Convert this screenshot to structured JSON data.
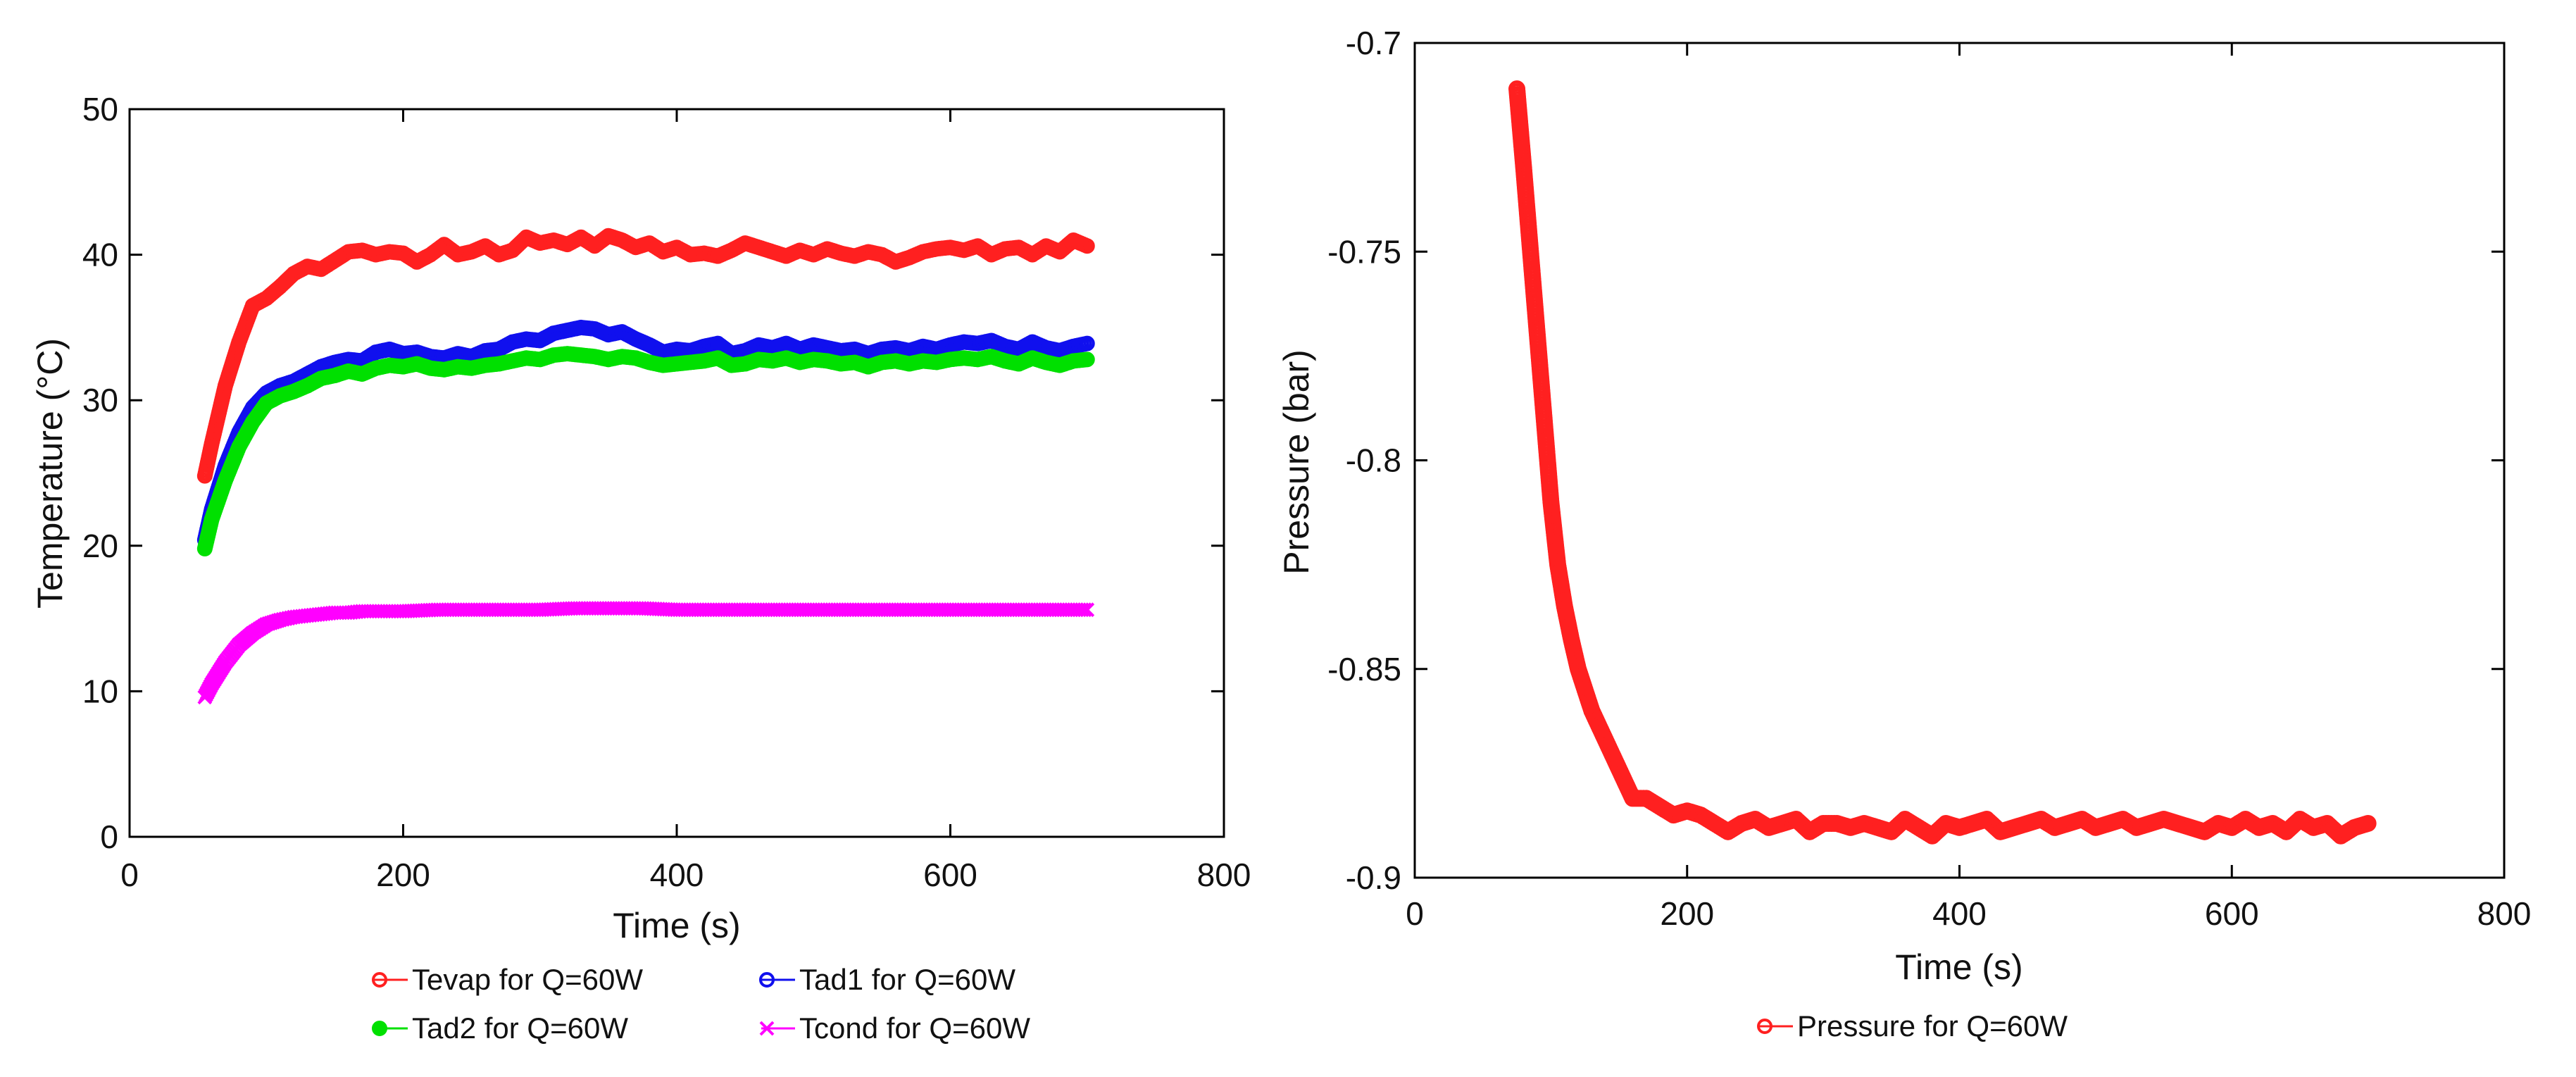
{
  "chart_data": [
    {
      "id": "temperature",
      "type": "line",
      "title": "",
      "xlabel": "Time (s)",
      "ylabel": "Temperature (°C)",
      "xlim": [
        0,
        800
      ],
      "ylim": [
        0,
        50
      ],
      "xticks": [
        0,
        200,
        400,
        600,
        800
      ],
      "yticks": [
        0,
        10,
        20,
        30,
        40,
        50
      ],
      "grid": false,
      "legend_position": "below",
      "series": [
        {
          "name": "Tevap for Q=60W",
          "color": "#ff2020",
          "marker": "circle-open",
          "x": [
            55,
            60,
            70,
            80,
            90,
            100,
            110,
            120,
            130,
            140,
            150,
            160,
            170,
            180,
            190,
            200,
            210,
            220,
            230,
            240,
            250,
            260,
            270,
            280,
            290,
            300,
            310,
            320,
            330,
            340,
            350,
            360,
            370,
            380,
            390,
            400,
            410,
            420,
            430,
            440,
            450,
            460,
            470,
            480,
            490,
            500,
            510,
            520,
            530,
            540,
            550,
            560,
            570,
            580,
            590,
            600,
            610,
            620,
            630,
            640,
            650,
            660,
            670,
            680,
            690,
            700
          ],
          "y": [
            24.8,
            27.0,
            31.0,
            34.0,
            36.5,
            37.0,
            37.8,
            38.7,
            39.2,
            39.0,
            39.6,
            40.2,
            40.3,
            40.0,
            40.2,
            40.1,
            39.5,
            40.0,
            40.7,
            40.0,
            40.2,
            40.6,
            40.0,
            40.3,
            41.2,
            40.8,
            41.0,
            40.7,
            41.2,
            40.6,
            41.3,
            41.0,
            40.5,
            40.8,
            40.2,
            40.5,
            40.0,
            40.1,
            39.9,
            40.3,
            40.8,
            40.5,
            40.2,
            39.9,
            40.3,
            40.0,
            40.4,
            40.1,
            39.9,
            40.2,
            40.0,
            39.5,
            39.8,
            40.2,
            40.4,
            40.5,
            40.3,
            40.6,
            40.0,
            40.4,
            40.5,
            40.0,
            40.6,
            40.2,
            41.0,
            40.6
          ]
        },
        {
          "name": "Tad1 for Q=60W",
          "color": "#1010ee",
          "marker": "circle-open",
          "x": [
            55,
            60,
            70,
            80,
            90,
            100,
            110,
            120,
            130,
            140,
            150,
            160,
            170,
            180,
            190,
            200,
            210,
            220,
            230,
            240,
            250,
            260,
            270,
            280,
            290,
            300,
            310,
            320,
            330,
            340,
            350,
            360,
            370,
            380,
            390,
            400,
            410,
            420,
            430,
            440,
            450,
            460,
            470,
            480,
            490,
            500,
            510,
            520,
            530,
            540,
            550,
            560,
            570,
            580,
            590,
            600,
            610,
            620,
            630,
            640,
            650,
            660,
            670,
            680,
            690,
            700
          ],
          "y": [
            20.4,
            22.5,
            25.5,
            27.8,
            29.5,
            30.5,
            31.0,
            31.3,
            31.8,
            32.3,
            32.6,
            32.8,
            32.7,
            33.3,
            33.5,
            33.2,
            33.3,
            33.0,
            32.9,
            33.2,
            33.0,
            33.4,
            33.5,
            34.0,
            34.2,
            34.1,
            34.6,
            34.8,
            35.0,
            34.9,
            34.5,
            34.7,
            34.2,
            33.8,
            33.3,
            33.5,
            33.4,
            33.7,
            33.9,
            33.2,
            33.4,
            33.8,
            33.6,
            33.9,
            33.5,
            33.8,
            33.6,
            33.4,
            33.5,
            33.2,
            33.5,
            33.6,
            33.4,
            33.7,
            33.5,
            33.8,
            34.0,
            33.9,
            34.1,
            33.7,
            33.5,
            34.0,
            33.6,
            33.4,
            33.7,
            33.9
          ]
        },
        {
          "name": "Tad2 for Q=60W",
          "color": "#00e000",
          "marker": "circle-filled",
          "x": [
            55,
            60,
            70,
            80,
            90,
            100,
            110,
            120,
            130,
            140,
            150,
            160,
            170,
            180,
            190,
            200,
            210,
            220,
            230,
            240,
            250,
            260,
            270,
            280,
            290,
            300,
            310,
            320,
            330,
            340,
            350,
            360,
            370,
            380,
            390,
            400,
            410,
            420,
            430,
            440,
            450,
            460,
            470,
            480,
            490,
            500,
            510,
            520,
            530,
            540,
            550,
            560,
            570,
            580,
            590,
            600,
            610,
            620,
            630,
            640,
            650,
            660,
            670,
            680,
            690,
            700
          ],
          "y": [
            19.8,
            21.8,
            24.5,
            26.8,
            28.5,
            29.8,
            30.3,
            30.6,
            31.0,
            31.5,
            31.7,
            32.0,
            31.8,
            32.2,
            32.4,
            32.3,
            32.5,
            32.2,
            32.1,
            32.3,
            32.2,
            32.4,
            32.5,
            32.7,
            32.9,
            32.8,
            33.1,
            33.2,
            33.1,
            33.0,
            32.8,
            33.0,
            32.9,
            32.6,
            32.4,
            32.5,
            32.6,
            32.7,
            32.9,
            32.4,
            32.5,
            32.8,
            32.7,
            32.9,
            32.6,
            32.8,
            32.7,
            32.5,
            32.6,
            32.3,
            32.6,
            32.7,
            32.5,
            32.7,
            32.6,
            32.8,
            32.9,
            32.8,
            33.0,
            32.7,
            32.5,
            32.9,
            32.6,
            32.4,
            32.7,
            32.8
          ]
        },
        {
          "name": "Tcond for Q=60W",
          "color": "#ff00ff",
          "marker": "x",
          "x": [
            55,
            60,
            70,
            80,
            90,
            100,
            110,
            120,
            130,
            140,
            150,
            160,
            170,
            180,
            190,
            200,
            225,
            250,
            275,
            300,
            325,
            350,
            375,
            400,
            425,
            450,
            475,
            500,
            525,
            550,
            575,
            600,
            625,
            650,
            675,
            700
          ],
          "y": [
            9.6,
            10.5,
            12.0,
            13.2,
            14.0,
            14.6,
            14.9,
            15.1,
            15.2,
            15.3,
            15.4,
            15.4,
            15.5,
            15.5,
            15.5,
            15.5,
            15.6,
            15.6,
            15.6,
            15.6,
            15.7,
            15.7,
            15.7,
            15.6,
            15.6,
            15.6,
            15.6,
            15.6,
            15.6,
            15.6,
            15.6,
            15.6,
            15.6,
            15.6,
            15.6,
            15.6
          ]
        }
      ]
    },
    {
      "id": "pressure",
      "type": "scatter",
      "title": "",
      "xlabel": "Time (s)",
      "ylabel": "Pressure (bar)",
      "xlim": [
        0,
        800
      ],
      "ylim": [
        -0.9,
        -0.7
      ],
      "xticks": [
        0,
        200,
        400,
        600,
        800
      ],
      "yticks": [
        -0.9,
        -0.85,
        -0.8,
        -0.75,
        -0.7
      ],
      "ytick_labels": [
        "-0.9",
        "-0.85",
        "-0.8",
        "-0.75",
        "-0.7"
      ],
      "grid": false,
      "legend_position": "below",
      "series": [
        {
          "name": "Pressure for Q=60W",
          "color": "#ff2020",
          "marker": "circle-open",
          "x": [
            75,
            80,
            85,
            90,
            95,
            100,
            105,
            110,
            115,
            120,
            125,
            130,
            140,
            150,
            160,
            170,
            180,
            190,
            200,
            210,
            220,
            230,
            240,
            250,
            260,
            270,
            280,
            290,
            300,
            310,
            320,
            330,
            340,
            350,
            360,
            370,
            380,
            390,
            400,
            410,
            420,
            430,
            440,
            450,
            460,
            470,
            480,
            490,
            500,
            510,
            520,
            530,
            540,
            550,
            560,
            570,
            580,
            590,
            600,
            610,
            620,
            630,
            640,
            650,
            660,
            670,
            680,
            690,
            700
          ],
          "y": [
            -0.711,
            -0.73,
            -0.75,
            -0.77,
            -0.79,
            -0.81,
            -0.825,
            -0.835,
            -0.843,
            -0.85,
            -0.855,
            -0.86,
            -0.867,
            -0.874,
            -0.881,
            -0.881,
            -0.883,
            -0.885,
            -0.884,
            -0.885,
            -0.887,
            -0.889,
            -0.887,
            -0.886,
            -0.888,
            -0.887,
            -0.886,
            -0.889,
            -0.887,
            -0.887,
            -0.888,
            -0.887,
            -0.888,
            -0.889,
            -0.886,
            -0.888,
            -0.89,
            -0.887,
            -0.888,
            -0.887,
            -0.886,
            -0.889,
            -0.888,
            -0.887,
            -0.886,
            -0.888,
            -0.887,
            -0.886,
            -0.888,
            -0.887,
            -0.886,
            -0.888,
            -0.887,
            -0.886,
            -0.887,
            -0.888,
            -0.889,
            -0.887,
            -0.888,
            -0.886,
            -0.888,
            -0.887,
            -0.889,
            -0.886,
            -0.888,
            -0.887,
            -0.89,
            -0.888,
            -0.887
          ]
        }
      ]
    }
  ]
}
